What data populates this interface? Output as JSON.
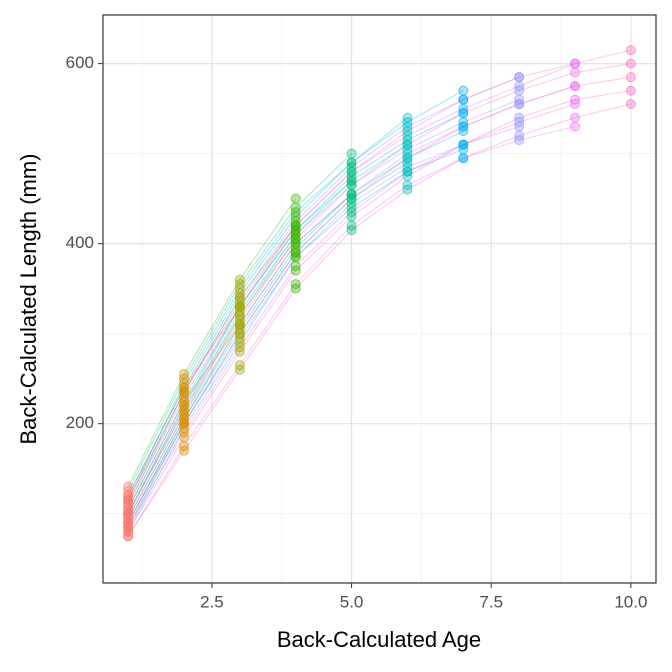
{
  "chart_data": {
    "type": "line",
    "x_label": "Back-Calculated Age",
    "y_label": "Back-Calculated Length (mm)",
    "x": [
      1,
      2,
      3,
      4,
      5,
      6,
      7,
      8,
      9,
      10
    ],
    "xlim": [
      0.55,
      10.45
    ],
    "ylim": [
      23,
      654
    ],
    "xticks": [
      {
        "value": 2.5,
        "label": "2.5"
      },
      {
        "value": 5,
        "label": "5.0"
      },
      {
        "value": 7.5,
        "label": "7.5"
      },
      {
        "value": 10,
        "label": "10.0"
      }
    ],
    "yticks": [
      200,
      400,
      600
    ],
    "minor_xticks": [
      1.25,
      3.75,
      6.25,
      8.75
    ],
    "minor_yticks": [
      100,
      300,
      500
    ],
    "grid": true,
    "point_colors": [
      "#F8766D",
      "#D89000",
      "#A3A500",
      "#39B600",
      "#00BF7D",
      "#00BFC4",
      "#00B0F6",
      "#9590FF",
      "#E76BF3",
      "#FF62BC"
    ],
    "series": [
      {
        "color": "#A3A500",
        "values": [
          120,
          240,
          330,
          null,
          null,
          null,
          null,
          null,
          null,
          null
        ]
      },
      {
        "color": "#A3A500",
        "values": [
          105,
          225,
          310,
          null,
          null,
          null,
          null,
          null,
          null,
          null
        ]
      },
      {
        "color": "#39B600",
        "values": [
          130,
          255,
          360,
          450,
          null,
          null,
          null,
          null,
          null,
          null
        ]
      },
      {
        "color": "#39B600",
        "values": [
          110,
          235,
          340,
          420,
          null,
          null,
          null,
          null,
          null,
          null
        ]
      },
      {
        "color": "#39B600",
        "values": [
          95,
          210,
          320,
          405,
          null,
          null,
          null,
          null,
          null,
          null
        ]
      },
      {
        "color": "#00BF7D",
        "values": [
          125,
          250,
          355,
          440,
          500,
          null,
          null,
          null,
          null,
          null
        ]
      },
      {
        "color": "#00BF7D",
        "values": [
          100,
          220,
          330,
          415,
          470,
          null,
          null,
          null,
          null,
          null
        ]
      },
      {
        "color": "#00BF7D",
        "values": [
          90,
          205,
          310,
          400,
          455,
          null,
          null,
          null,
          null,
          null
        ]
      },
      {
        "color": "#00BFC4",
        "values": [
          115,
          245,
          350,
          435,
          490,
          540,
          null,
          null,
          null,
          null
        ]
      },
      {
        "color": "#00BFC4",
        "values": [
          100,
          215,
          325,
          410,
          470,
          510,
          null,
          null,
          null,
          null
        ]
      },
      {
        "color": "#00BFC4",
        "values": [
          85,
          200,
          300,
          390,
          450,
          490,
          null,
          null,
          null,
          null
        ]
      },
      {
        "color": "#00B0F6",
        "values": [
          120,
          240,
          345,
          430,
          490,
          535,
          570,
          null,
          null,
          null
        ]
      },
      {
        "color": "#00B0F6",
        "values": [
          105,
          225,
          330,
          415,
          475,
          515,
          545,
          null,
          null,
          null
        ]
      },
      {
        "color": "#00B0F6",
        "values": [
          90,
          205,
          305,
          395,
          455,
          495,
          525,
          null,
          null,
          null
        ]
      },
      {
        "color": "#00B0F6",
        "values": [
          80,
          195,
          290,
          385,
          440,
          480,
          505,
          null,
          null,
          null
        ]
      },
      {
        "color": "#9590FF",
        "values": [
          115,
          235,
          340,
          425,
          485,
          530,
          560,
          585,
          null,
          null
        ]
      },
      {
        "color": "#9590FF",
        "values": [
          100,
          220,
          320,
          410,
          465,
          505,
          535,
          560,
          null,
          null
        ]
      },
      {
        "color": "#9590FF",
        "values": [
          85,
          200,
          295,
          385,
          445,
          485,
          510,
          530,
          null,
          null
        ]
      },
      {
        "color": "#E76BF3",
        "values": [
          110,
          230,
          330,
          420,
          480,
          520,
          550,
          575,
          600,
          null
        ]
      },
      {
        "color": "#E76BF3",
        "values": [
          95,
          210,
          310,
          400,
          455,
          500,
          530,
          555,
          575,
          null
        ]
      },
      {
        "color": "#E76BF3",
        "values": [
          85,
          190,
          285,
          375,
          435,
          480,
          510,
          535,
          555,
          null
        ]
      },
      {
        "color": "#E76BF3",
        "values": [
          75,
          175,
          265,
          355,
          420,
          465,
          495,
          515,
          530,
          null
        ]
      },
      {
        "color": "#FF62BC",
        "values": [
          115,
          235,
          335,
          420,
          480,
          525,
          560,
          585,
          600,
          615
        ]
      },
      {
        "color": "#FF62BC",
        "values": [
          100,
          215,
          315,
          405,
          465,
          510,
          545,
          570,
          590,
          600
        ]
      },
      {
        "color": "#FF62BC",
        "values": [
          90,
          200,
          300,
          390,
          450,
          495,
          530,
          555,
          575,
          585
        ]
      },
      {
        "color": "#FF62BC",
        "values": [
          80,
          185,
          280,
          370,
          430,
          475,
          510,
          540,
          560,
          570
        ]
      },
      {
        "color": "#FF62BC",
        "values": [
          75,
          170,
          260,
          350,
          415,
          460,
          495,
          520,
          540,
          555
        ]
      }
    ]
  }
}
